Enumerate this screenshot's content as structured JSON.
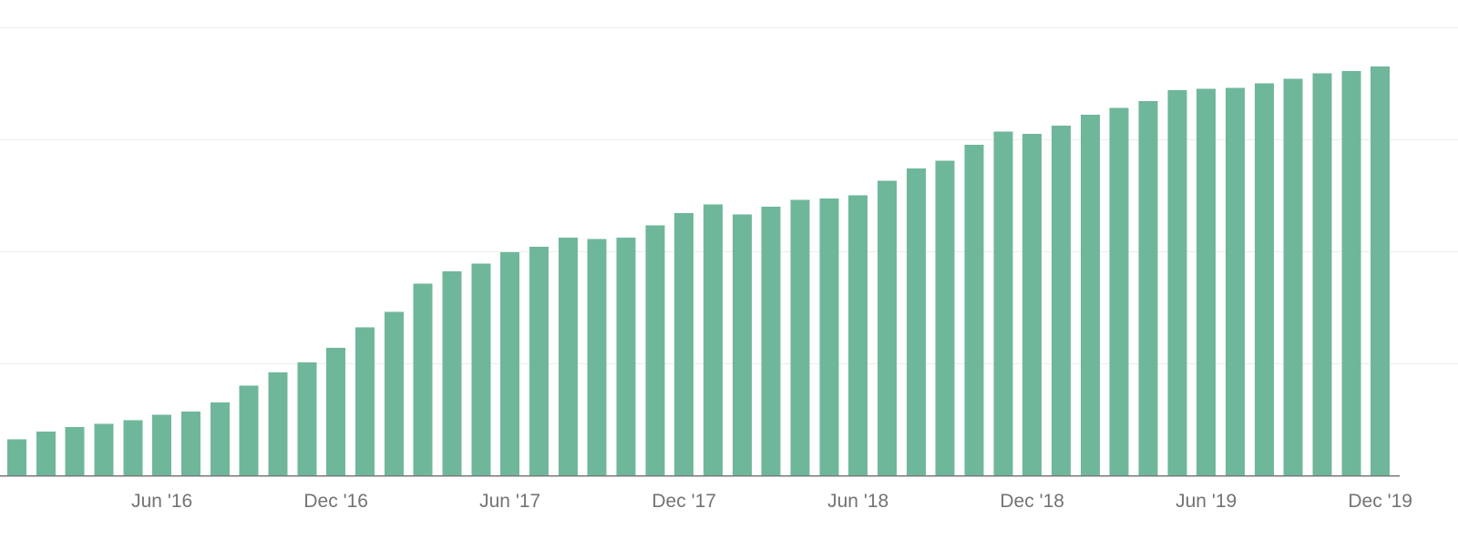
{
  "chart_data": {
    "type": "bar",
    "title": "",
    "xlabel": "",
    "ylabel": "",
    "bar_color": "#6fb79b",
    "grid": true,
    "ylim": [
      0,
      4
    ],
    "categories": [
      "Jan '16",
      "Feb '16",
      "Mar '16",
      "Apr '16",
      "May '16",
      "Jun '16",
      "Jul '16",
      "Aug '16",
      "Sep '16",
      "Oct '16",
      "Nov '16",
      "Dec '16",
      "Jan '17",
      "Feb '17",
      "Mar '17",
      "Apr '17",
      "May '17",
      "Jun '17",
      "Jul '17",
      "Aug '17",
      "Sep '17",
      "Oct '17",
      "Nov '17",
      "Dec '17",
      "Jan '18",
      "Feb '18",
      "Mar '18",
      "Apr '18",
      "May '18",
      "Jun '18",
      "Jul '18",
      "Aug '18",
      "Sep '18",
      "Oct '18",
      "Nov '18",
      "Dec '18",
      "Jan '19",
      "Feb '19",
      "Mar '19",
      "Apr '19",
      "May '19",
      "Jun '19",
      "Jul '19",
      "Aug '19",
      "Sep '19",
      "Oct '19",
      "Nov '19",
      "Dec '19"
    ],
    "values": [
      0.32,
      0.39,
      0.43,
      0.46,
      0.49,
      0.54,
      0.57,
      0.65,
      0.8,
      0.92,
      1.01,
      1.14,
      1.32,
      1.46,
      1.71,
      1.82,
      1.89,
      1.99,
      2.04,
      2.12,
      2.11,
      2.12,
      2.23,
      2.34,
      2.42,
      2.33,
      2.4,
      2.46,
      2.47,
      2.5,
      2.63,
      2.74,
      2.81,
      2.95,
      3.07,
      3.05,
      3.12,
      3.22,
      3.28,
      3.34,
      3.44,
      3.45,
      3.46,
      3.5,
      3.54,
      3.59,
      3.61,
      3.65
    ],
    "x_tick_labels": [
      {
        "label": "Jun '16",
        "index": 5
      },
      {
        "label": "Dec '16",
        "index": 11
      },
      {
        "label": "Jun '17",
        "index": 17
      },
      {
        "label": "Dec '17",
        "index": 23
      },
      {
        "label": "Jun '18",
        "index": 29
      },
      {
        "label": "Dec '18",
        "index": 35
      },
      {
        "label": "Jun '19",
        "index": 41
      },
      {
        "label": "Dec '19",
        "index": 47
      }
    ],
    "gridline_values": [
      0,
      1,
      2,
      3,
      4
    ]
  }
}
